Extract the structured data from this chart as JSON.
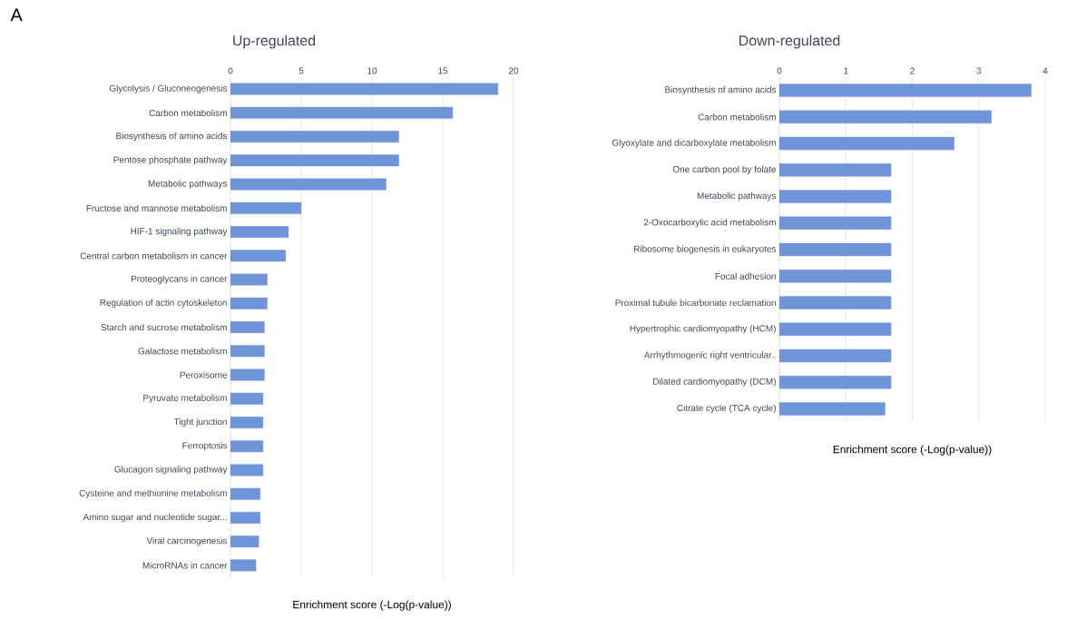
{
  "chart_data": [
    {
      "type": "bar",
      "orientation": "horizontal",
      "title": "Up-regulated",
      "xlabel": "Enrichment score (-Log(p-value))",
      "annotations": [
        "A"
      ],
      "categories": [
        "Glycolysis / Gluconeogenesis",
        "Carbon metabolism",
        "Biosynthesis of amino acids",
        "Pentose phosphate pathway",
        "Metabolic pathways",
        "Fructose and mannose metabolism",
        "HIF-1 signaling pathway",
        "Central carbon metabolism in cancer",
        "Proteoglycans in cancer",
        "Regulation of actin cytoskeleton",
        "Starch and sucrose metabolism",
        "Galactose metabolism",
        "Peroxisome",
        "Pyruvate metabolism",
        "Tight junction",
        "Ferroptosis",
        "Glucagon signaling pathway",
        "Cysteine and methionine metabolism",
        "Amino sugar and nucleotide sugar...",
        "Viral carcinogenesis",
        "MicroRNAs in cancer"
      ],
      "values": [
        18.9,
        15.7,
        11.9,
        11.9,
        11.0,
        5.0,
        4.1,
        3.9,
        2.6,
        2.6,
        2.4,
        2.4,
        2.4,
        2.3,
        2.3,
        2.3,
        2.3,
        2.1,
        2.1,
        2.0,
        1.8
      ],
      "color": "#7094d9",
      "xlim": [
        0,
        20
      ],
      "xticks": [
        0,
        5,
        10,
        15,
        20
      ],
      "grid": "x"
    },
    {
      "type": "bar",
      "orientation": "horizontal",
      "title": "Down-regulated",
      "xlabel": "Enrichment score (-Log(p-value))",
      "categories": [
        "Biosynthesis of amino acids",
        "Carbon metabolism",
        "Glyoxylate and dicarboxylate metabolism",
        "One carbon pool by folate",
        "Metabolic pathways",
        "2-Oxocarboxylic acid metabolism",
        "Ribosome biogenesis in eukaryotes",
        "Focal adhesion",
        "Proximal tubule bicarbonate reclamation",
        "Hypertrophic cardiomyopathy (HCM)",
        "Arrhythmogenic right ventricular..",
        "Dilated cardiomyopathy (DCM)",
        "Citrate cycle (TCA cycle)"
      ],
      "values": [
        3.79,
        3.19,
        2.63,
        1.68,
        1.68,
        1.68,
        1.68,
        1.68,
        1.68,
        1.68,
        1.68,
        1.68,
        1.59
      ],
      "color": "#7094d9",
      "xlim": [
        0,
        4
      ],
      "xticks": [
        0,
        1,
        2,
        3,
        4
      ],
      "grid": "x"
    }
  ]
}
